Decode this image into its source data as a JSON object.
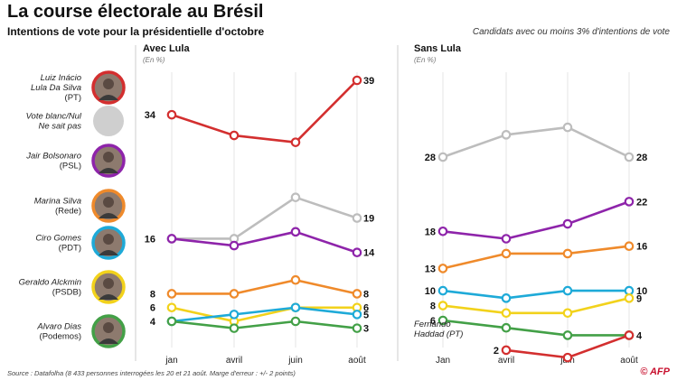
{
  "header": {
    "title": "La course électorale au Brésil",
    "subtitle": "Intentions de vote pour la présidentielle d'octobre",
    "note": "Candidats avec ou moins  3% d'intentions de vote"
  },
  "footer": {
    "source": "Source : Datafolha (8 433 personnes interrogées les 20 et 21 août. Marge d'erreur : +/- 2 points)",
    "logo": "© AFP"
  },
  "candidates": [
    {
      "key": "lula",
      "name": [
        "Luiz Inácio",
        "Lula Da Silva"
      ],
      "party": "(PT)",
      "color": "#d32f2f"
    },
    {
      "key": "blanc",
      "name": [
        "Vote blanc/Nul",
        "Ne sait pas"
      ],
      "party": "",
      "color": "#bdbdbd"
    },
    {
      "key": "bolsonaro",
      "name": [
        "Jair Bolsonaro"
      ],
      "party": "(PSL)",
      "color": "#8e24aa"
    },
    {
      "key": "silva",
      "name": [
        "Marina Silva"
      ],
      "party": "(Rede)",
      "color": "#ef8a2b"
    },
    {
      "key": "gomes",
      "name": [
        "Ciro Gomes"
      ],
      "party": "(PDT)",
      "color": "#1eaad8"
    },
    {
      "key": "alckmin",
      "name": [
        "Geraldo Alckmin"
      ],
      "party": "(PSDB)",
      "color": "#f2d21b"
    },
    {
      "key": "dias",
      "name": [
        "Alvaro Dias"
      ],
      "party": "(Podemos)",
      "color": "#43a047"
    }
  ],
  "chart_data": [
    {
      "type": "line",
      "title": "Avec Lula",
      "subtitle": "(En %)",
      "categories": [
        "jan",
        "avril",
        "juin",
        "août"
      ],
      "ylim": [
        3,
        40
      ],
      "series": [
        {
          "name": "Lula",
          "color": "#d32f2f",
          "values": [
            34,
            31,
            30,
            39
          ],
          "labels": {
            "0": "34",
            "3": "39"
          }
        },
        {
          "name": "Vote blanc/Nul",
          "color": "#bdbdbd",
          "values": [
            16,
            16,
            22,
            19
          ],
          "labels": {
            "3": "19"
          }
        },
        {
          "name": "Bolsonaro",
          "color": "#8e24aa",
          "values": [
            16,
            15,
            17,
            14
          ],
          "labels": {
            "0": "16",
            "3": "14"
          }
        },
        {
          "name": "Marina Silva",
          "color": "#ef8a2b",
          "values": [
            8,
            8,
            10,
            8
          ],
          "labels": {
            "0": "8",
            "3": "8"
          }
        },
        {
          "name": "Alckmin",
          "color": "#f2d21b",
          "values": [
            6,
            4,
            6,
            6
          ],
          "labels": {
            "0": "6",
            "3": "6"
          }
        },
        {
          "name": "Ciro Gomes",
          "color": "#1eaad8",
          "values": [
            4,
            5,
            6,
            5
          ],
          "labels": {
            "3": "5"
          }
        },
        {
          "name": "Alvaro Dias",
          "color": "#43a047",
          "values": [
            4,
            3,
            4,
            3
          ],
          "labels": {
            "0": "4",
            "3": "3"
          }
        }
      ]
    },
    {
      "type": "line",
      "title": "Sans Lula",
      "subtitle": "(En %)",
      "categories": [
        "Jan",
        "avril",
        "juin",
        "août"
      ],
      "ylim": [
        1,
        30
      ],
      "annotation": [
        "Fernando",
        "Haddad (PT)"
      ],
      "series": [
        {
          "name": "Vote blanc/Nul",
          "color": "#bdbdbd",
          "values": [
            28,
            31,
            32,
            28
          ],
          "labels": {
            "0": "28",
            "3": "28"
          }
        },
        {
          "name": "Bolsonaro",
          "color": "#8e24aa",
          "values": [
            18,
            17,
            19,
            22
          ],
          "labels": {
            "0": "18",
            "3": "22"
          }
        },
        {
          "name": "Marina Silva",
          "color": "#ef8a2b",
          "values": [
            13,
            15,
            15,
            16
          ],
          "labels": {
            "0": "13",
            "3": "16"
          }
        },
        {
          "name": "Ciro Gomes",
          "color": "#1eaad8",
          "values": [
            10,
            9,
            10,
            10
          ],
          "labels": {
            "0": "10",
            "3": "10"
          }
        },
        {
          "name": "Alckmin",
          "color": "#f2d21b",
          "values": [
            8,
            7,
            7,
            9
          ],
          "labels": {
            "0": "8",
            "3": "9"
          }
        },
        {
          "name": "Alvaro Dias",
          "color": "#43a047",
          "values": [
            6,
            5,
            4,
            4
          ],
          "labels": {
            "0": "6",
            "3": "4"
          }
        },
        {
          "name": "Haddad",
          "color": "#d32f2f",
          "values": [
            null,
            2,
            1,
            4
          ],
          "labels": {
            "1": "2"
          }
        }
      ]
    }
  ]
}
